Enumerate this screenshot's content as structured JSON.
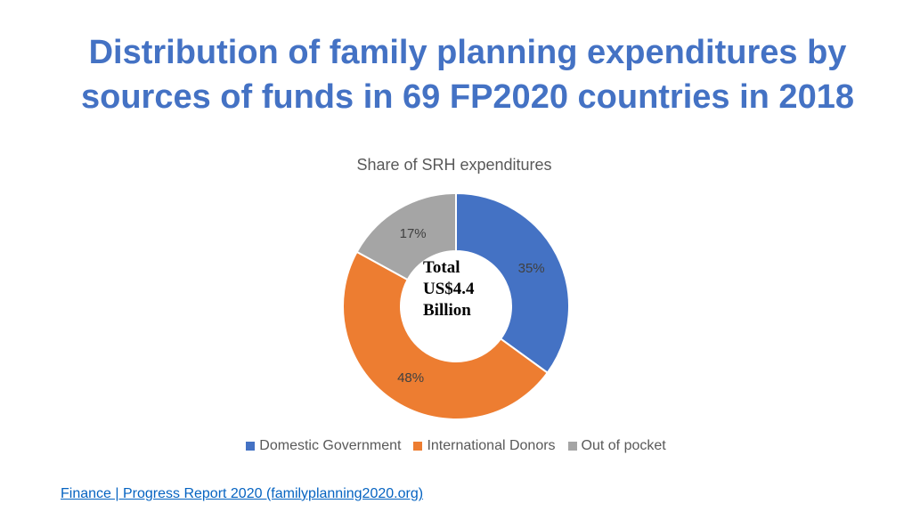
{
  "slide": {
    "title_line1": "Distribution of family planning expenditures by",
    "title_line2": "sources of funds in 69 FP2020 countries in 2018",
    "source_link": "Finance | Progress Report 2020 (familyplanning2020.org)"
  },
  "chart_data": {
    "type": "pie",
    "donut": true,
    "title": "Share of SRH expenditures",
    "center_text": [
      "Total",
      "US$4.4",
      "Billion"
    ],
    "categories": [
      "Domestic Government",
      "International Donors",
      "Out of pocket"
    ],
    "values": [
      35,
      48,
      17
    ],
    "data_labels": [
      "35%",
      "48%",
      "17%"
    ],
    "colors": [
      "#4472c4",
      "#ed7d31",
      "#a5a5a5"
    ],
    "legend_position": "bottom"
  }
}
